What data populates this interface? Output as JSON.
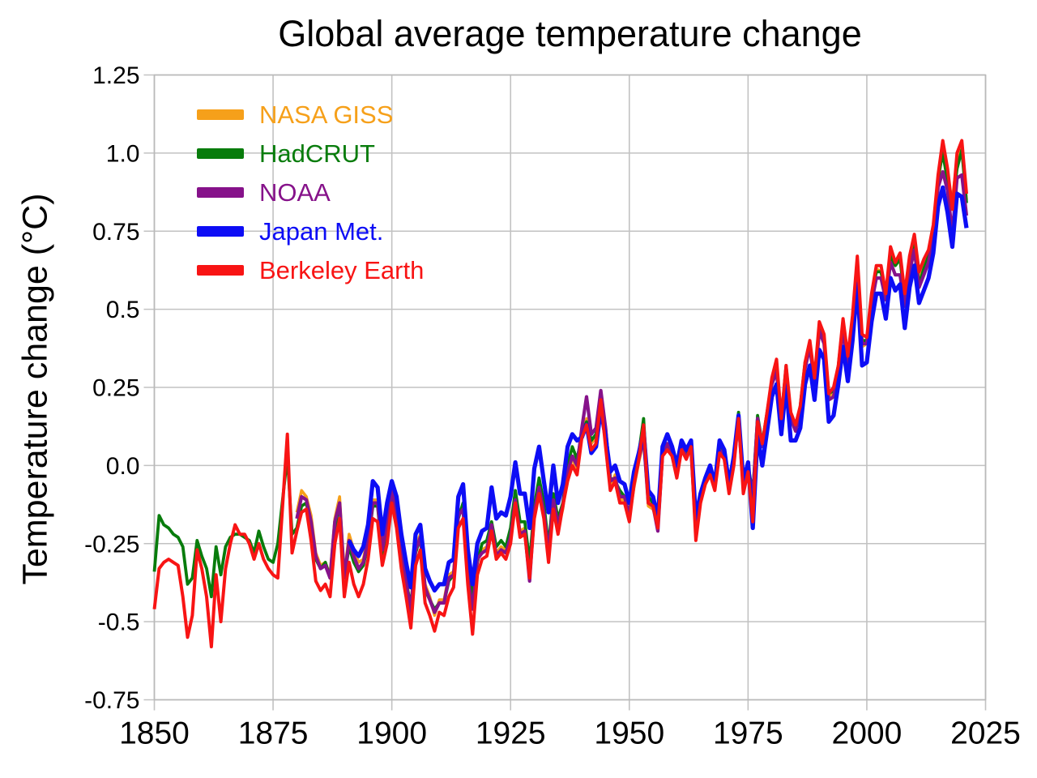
{
  "chart_data": {
    "type": "line",
    "title": "Global average temperature change",
    "xlabel": "",
    "ylabel": "Temperature change (°C)",
    "grid": true,
    "legend_position": "upper-left",
    "xlim": [
      1850,
      2025
    ],
    "ylim": [
      -0.75,
      1.25
    ],
    "x_ticks": [
      1850,
      1875,
      1900,
      1925,
      1950,
      1975,
      2000,
      2025
    ],
    "y_ticks": [
      1.25,
      1.0,
      0.75,
      0.5,
      0.25,
      0.0,
      -0.25,
      -0.5,
      -0.75
    ],
    "y_tick_labels": [
      "1.25",
      "1.0",
      "0.75",
      "0.5",
      "0.25",
      "0.0",
      "-0.25",
      "-0.5",
      "-0.75"
    ],
    "x_step": 1,
    "end_year": 2021,
    "series": [
      {
        "name": "NASA GISS",
        "color": "#F6A01A",
        "line_width": 3.6,
        "start_year": 1880,
        "values": [
          -0.15,
          -0.08,
          -0.1,
          -0.16,
          -0.28,
          -0.32,
          -0.31,
          -0.35,
          -0.17,
          -0.1,
          -0.35,
          -0.22,
          -0.27,
          -0.31,
          -0.3,
          -0.22,
          -0.11,
          -0.11,
          -0.26,
          -0.17,
          -0.07,
          -0.15,
          -0.27,
          -0.36,
          -0.46,
          -0.26,
          -0.22,
          -0.38,
          -0.42,
          -0.48,
          -0.43,
          -0.43,
          -0.35,
          -0.34,
          -0.15,
          -0.13,
          -0.35,
          -0.45,
          -0.29,
          -0.27,
          -0.26,
          -0.18,
          -0.28,
          -0.26,
          -0.27,
          -0.22,
          -0.1,
          -0.21,
          -0.2,
          -0.36,
          -0.16,
          -0.09,
          -0.16,
          -0.29,
          -0.12,
          -0.2,
          -0.14,
          -0.02,
          0.02,
          -0.01,
          0.1,
          0.15,
          0.07,
          0.09,
          0.2,
          0.09,
          -0.07,
          -0.03,
          -0.11,
          -0.11,
          -0.17,
          -0.07,
          0.01,
          0.08,
          -0.13,
          -0.14,
          -0.19,
          0.05,
          0.06,
          0.03,
          -0.03,
          0.06,
          0.03,
          0.05,
          -0.2,
          -0.11,
          -0.06,
          -0.02,
          -0.08,
          0.05,
          0.03,
          -0.08,
          0.01,
          0.16,
          -0.07,
          -0.01,
          -0.1,
          0.15,
          0.06,
          0.16,
          0.26,
          0.32,
          0.14,
          0.31,
          0.16,
          0.12,
          0.18,
          0.32,
          0.39,
          0.27,
          0.45,
          0.41,
          0.22,
          0.23,
          0.31,
          0.45,
          0.33,
          0.46,
          0.61,
          0.38,
          0.39,
          0.53,
          0.63,
          0.62,
          0.53,
          0.68,
          0.64,
          0.66,
          0.54,
          0.66,
          0.72,
          0.61,
          0.65,
          0.68,
          0.75,
          0.9,
          1.02,
          0.92,
          0.85,
          0.98,
          1.02,
          0.85
        ]
      },
      {
        "name": "HadCRUT",
        "color": "#087C0C",
        "line_width": 3.8,
        "start_year": 1850,
        "values": [
          -0.34,
          -0.16,
          -0.19,
          -0.2,
          -0.22,
          -0.23,
          -0.26,
          -0.38,
          -0.36,
          -0.24,
          -0.29,
          -0.33,
          -0.42,
          -0.26,
          -0.35,
          -0.26,
          -0.23,
          -0.22,
          -0.22,
          -0.23,
          -0.24,
          -0.28,
          -0.21,
          -0.26,
          -0.3,
          -0.31,
          -0.25,
          -0.11,
          0.03,
          -0.22,
          -0.2,
          -0.13,
          -0.12,
          -0.2,
          -0.3,
          -0.33,
          -0.31,
          -0.36,
          -0.2,
          -0.12,
          -0.36,
          -0.26,
          -0.31,
          -0.34,
          -0.32,
          -0.25,
          -0.13,
          -0.13,
          -0.29,
          -0.2,
          -0.09,
          -0.16,
          -0.29,
          -0.37,
          -0.45,
          -0.28,
          -0.23,
          -0.4,
          -0.43,
          -0.46,
          -0.44,
          -0.44,
          -0.37,
          -0.35,
          -0.17,
          -0.12,
          -0.32,
          -0.42,
          -0.31,
          -0.25,
          -0.24,
          -0.18,
          -0.26,
          -0.24,
          -0.26,
          -0.2,
          -0.08,
          -0.18,
          -0.18,
          -0.31,
          -0.13,
          -0.04,
          -0.12,
          -0.26,
          -0.09,
          -0.17,
          -0.12,
          0.0,
          0.06,
          0.02,
          0.1,
          0.14,
          0.08,
          0.1,
          0.21,
          0.12,
          -0.04,
          -0.05,
          -0.08,
          -0.1,
          -0.16,
          -0.02,
          0.04,
          0.15,
          -0.1,
          -0.12,
          -0.18,
          0.04,
          0.07,
          0.04,
          -0.02,
          0.06,
          0.04,
          0.07,
          -0.19,
          -0.09,
          -0.05,
          -0.01,
          -0.07,
          0.06,
          0.04,
          -0.07,
          0.02,
          0.17,
          -0.06,
          0.0,
          -0.09,
          0.16,
          0.07,
          0.17,
          0.27,
          0.31,
          0.15,
          0.32,
          0.15,
          0.12,
          0.19,
          0.33,
          0.38,
          0.28,
          0.44,
          0.4,
          0.23,
          0.24,
          0.32,
          0.46,
          0.34,
          0.47,
          0.63,
          0.4,
          0.4,
          0.54,
          0.62,
          0.62,
          0.54,
          0.67,
          0.64,
          0.66,
          0.53,
          0.65,
          0.71,
          0.58,
          0.63,
          0.67,
          0.74,
          0.92,
          1.0,
          0.91,
          0.83,
          0.95,
          1.01,
          0.84
        ]
      },
      {
        "name": "NOAA",
        "color": "#86128A",
        "line_width": 4.2,
        "start_year": 1880,
        "values": [
          -0.17,
          -0.1,
          -0.11,
          -0.18,
          -0.29,
          -0.33,
          -0.32,
          -0.36,
          -0.18,
          -0.12,
          -0.36,
          -0.24,
          -0.29,
          -0.33,
          -0.31,
          -0.24,
          -0.12,
          -0.12,
          -0.27,
          -0.18,
          -0.08,
          -0.16,
          -0.28,
          -0.37,
          -0.47,
          -0.27,
          -0.23,
          -0.39,
          -0.43,
          -0.47,
          -0.44,
          -0.44,
          -0.36,
          -0.35,
          -0.16,
          -0.14,
          -0.36,
          -0.46,
          -0.3,
          -0.28,
          -0.27,
          -0.19,
          -0.29,
          -0.27,
          -0.28,
          -0.23,
          -0.11,
          -0.22,
          -0.21,
          -0.37,
          -0.15,
          -0.07,
          -0.15,
          -0.28,
          -0.11,
          -0.19,
          -0.13,
          -0.02,
          0.03,
          0.0,
          0.12,
          0.22,
          0.1,
          0.12,
          0.24,
          0.12,
          -0.05,
          -0.04,
          -0.1,
          -0.1,
          -0.16,
          -0.06,
          0.02,
          0.09,
          -0.12,
          -0.13,
          -0.21,
          0.04,
          0.07,
          0.03,
          -0.03,
          0.06,
          0.03,
          0.05,
          -0.21,
          -0.11,
          -0.05,
          -0.02,
          -0.07,
          0.05,
          0.03,
          -0.08,
          0.01,
          0.16,
          -0.07,
          -0.01,
          -0.1,
          0.15,
          0.06,
          0.15,
          0.26,
          0.3,
          0.14,
          0.3,
          0.15,
          0.11,
          0.17,
          0.31,
          0.38,
          0.26,
          0.43,
          0.39,
          0.21,
          0.22,
          0.3,
          0.44,
          0.31,
          0.45,
          0.62,
          0.39,
          0.39,
          0.52,
          0.6,
          0.6,
          0.53,
          0.65,
          0.61,
          0.61,
          0.51,
          0.62,
          0.69,
          0.57,
          0.61,
          0.65,
          0.73,
          0.89,
          0.94,
          0.88,
          0.74,
          0.92,
          0.93,
          0.8
        ]
      },
      {
        "name": "Japan Met.",
        "color": "#0D0DF5",
        "line_width": 5.2,
        "start_year": 1891,
        "values": [
          -0.24,
          -0.27,
          -0.29,
          -0.26,
          -0.19,
          -0.05,
          -0.07,
          -0.22,
          -0.12,
          -0.05,
          -0.1,
          -0.22,
          -0.31,
          -0.39,
          -0.22,
          -0.19,
          -0.33,
          -0.37,
          -0.4,
          -0.38,
          -0.38,
          -0.31,
          -0.3,
          -0.1,
          -0.06,
          -0.27,
          -0.38,
          -0.25,
          -0.21,
          -0.2,
          -0.07,
          -0.17,
          -0.15,
          -0.16,
          -0.1,
          0.01,
          -0.09,
          -0.09,
          -0.2,
          -0.01,
          0.06,
          -0.05,
          -0.15,
          0.0,
          -0.12,
          -0.06,
          0.06,
          0.1,
          0.08,
          0.09,
          0.13,
          0.04,
          0.06,
          0.18,
          0.09,
          -0.02,
          0.0,
          -0.05,
          -0.06,
          -0.12,
          -0.02,
          0.04,
          0.11,
          -0.08,
          -0.1,
          -0.17,
          0.06,
          0.1,
          0.06,
          0.0,
          0.08,
          0.05,
          0.08,
          -0.17,
          -0.09,
          -0.04,
          0.0,
          -0.06,
          0.08,
          0.05,
          -0.06,
          0.03,
          0.16,
          -0.05,
          0.01,
          -0.2,
          0.1,
          0.0,
          0.11,
          0.22,
          0.26,
          0.1,
          0.26,
          0.08,
          0.08,
          0.12,
          0.26,
          0.32,
          0.21,
          0.37,
          0.34,
          0.14,
          0.16,
          0.26,
          0.38,
          0.27,
          0.4,
          0.58,
          0.32,
          0.33,
          0.46,
          0.55,
          0.55,
          0.47,
          0.6,
          0.56,
          0.58,
          0.44,
          0.57,
          0.64,
          0.52,
          0.56,
          0.6,
          0.68,
          0.83,
          0.89,
          0.81,
          0.7,
          0.87,
          0.86,
          0.76
        ]
      },
      {
        "name": "Berkeley Earth",
        "color": "#F81414",
        "line_width": 4.0,
        "start_year": 1850,
        "values": [
          -0.46,
          -0.33,
          -0.31,
          -0.3,
          -0.31,
          -0.32,
          -0.42,
          -0.55,
          -0.48,
          -0.27,
          -0.33,
          -0.42,
          -0.58,
          -0.35,
          -0.5,
          -0.33,
          -0.25,
          -0.19,
          -0.22,
          -0.22,
          -0.25,
          -0.3,
          -0.25,
          -0.3,
          -0.33,
          -0.35,
          -0.36,
          -0.13,
          0.1,
          -0.28,
          -0.21,
          -0.15,
          -0.14,
          -0.24,
          -0.37,
          -0.4,
          -0.38,
          -0.42,
          -0.25,
          -0.17,
          -0.42,
          -0.31,
          -0.38,
          -0.42,
          -0.38,
          -0.3,
          -0.17,
          -0.18,
          -0.32,
          -0.25,
          -0.12,
          -0.2,
          -0.33,
          -0.42,
          -0.52,
          -0.32,
          -0.27,
          -0.44,
          -0.48,
          -0.53,
          -0.47,
          -0.48,
          -0.42,
          -0.39,
          -0.2,
          -0.17,
          -0.38,
          -0.54,
          -0.35,
          -0.3,
          -0.29,
          -0.21,
          -0.3,
          -0.28,
          -0.3,
          -0.25,
          -0.12,
          -0.23,
          -0.22,
          -0.36,
          -0.17,
          -0.09,
          -0.17,
          -0.31,
          -0.14,
          -0.22,
          -0.13,
          -0.05,
          0.0,
          -0.03,
          0.09,
          0.13,
          0.05,
          0.07,
          0.21,
          0.06,
          -0.08,
          -0.05,
          -0.12,
          -0.12,
          -0.18,
          -0.06,
          0.02,
          0.13,
          -0.12,
          -0.13,
          -0.2,
          0.03,
          0.05,
          0.03,
          -0.04,
          0.05,
          0.02,
          0.06,
          -0.24,
          -0.12,
          -0.06,
          -0.03,
          -0.08,
          0.04,
          0.02,
          -0.09,
          0.0,
          0.15,
          -0.09,
          -0.02,
          -0.18,
          0.14,
          0.07,
          0.17,
          0.28,
          0.34,
          0.15,
          0.32,
          0.17,
          0.13,
          0.19,
          0.33,
          0.4,
          0.28,
          0.46,
          0.42,
          0.23,
          0.25,
          0.32,
          0.47,
          0.35,
          0.48,
          0.67,
          0.42,
          0.41,
          0.55,
          0.64,
          0.64,
          0.55,
          0.7,
          0.65,
          0.68,
          0.55,
          0.67,
          0.74,
          0.62,
          0.66,
          0.69,
          0.77,
          0.93,
          1.04,
          0.95,
          0.82,
          1.0,
          1.04,
          0.87
        ]
      }
    ],
    "style": {
      "grid_color": "#c2c2c2",
      "frame_color": "#b9b9b9",
      "text_color": "#000000",
      "background": "#ffffff"
    }
  }
}
